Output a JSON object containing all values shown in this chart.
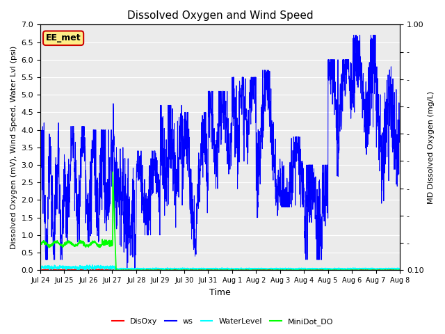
{
  "title": "Dissolved Oxygen and Wind Speed",
  "xlabel": "Time",
  "ylabel_left": "Dissolved Oxygen (mV), Wind Speed, Water Lvl (psi)",
  "ylabel_right": "MD Dissolved Oxygen (mg/L)",
  "ylim_left": [
    0.0,
    7.0
  ],
  "ylim_right": [
    0.1,
    1.0
  ],
  "bg_color": "#ebebeb",
  "annotation_text": "EE_met",
  "annotation_facecolor": "#ffee88",
  "annotation_edgecolor": "#cc0000",
  "xtick_labels": [
    "Jul 24",
    "Jul 25",
    "Jul 26",
    "Jul 27",
    "Jul 28",
    "Jul 29",
    "Jul 30",
    "Jul 31",
    "Aug 1",
    "Aug 2",
    "Aug 3",
    "Aug 4",
    "Aug 5",
    "Aug 6",
    "Aug 7",
    "Aug 8"
  ],
  "legend_labels": [
    "DisOxy",
    "ws",
    "WaterLevel",
    "MiniDot_DO"
  ],
  "legend_colors": [
    "#ff0000",
    "#0000ff",
    "#00ccff",
    "#00cc00"
  ]
}
